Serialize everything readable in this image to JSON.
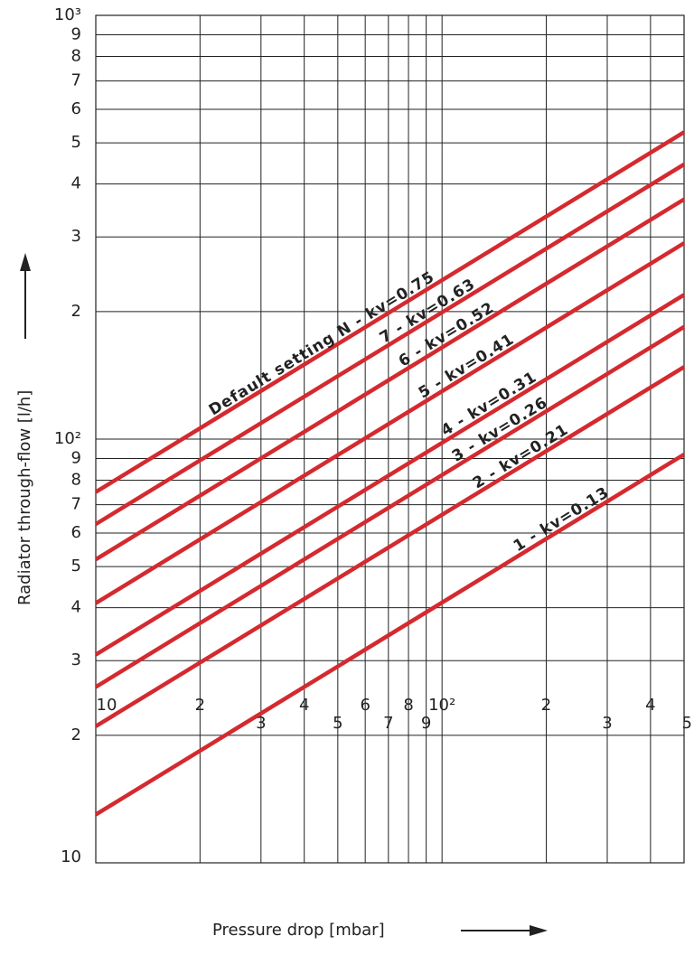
{
  "chart_data": {
    "type": "line",
    "x_label": "Pressure drop [mbar]",
    "y_label": "Radiator through-flow [l/h]",
    "log_x": true,
    "log_y": true,
    "grid": true,
    "xlim": [
      10,
      500
    ],
    "ylim": [
      10,
      1000
    ],
    "xticks": [
      10,
      {
        "value": 20,
        "label": "2"
      },
      {
        "value": 30,
        "label": "3"
      },
      {
        "value": 40,
        "label": "4"
      },
      {
        "value": 50,
        "label": "5"
      },
      {
        "value": 60,
        "label": "6"
      },
      {
        "value": 70,
        "label": "7"
      },
      {
        "value": 80,
        "label": "8"
      },
      {
        "value": 90,
        "label": "9"
      },
      {
        "value": 100,
        "label": "10²"
      },
      {
        "value": 200,
        "label": "2"
      },
      {
        "value": 300,
        "label": "3"
      },
      {
        "value": 400,
        "label": "4"
      },
      {
        "value": 500,
        "label": "5"
      }
    ],
    "yticks": [
      10,
      {
        "value": 20,
        "label": "2"
      },
      {
        "value": 30,
        "label": "3"
      },
      {
        "value": 40,
        "label": "4"
      },
      {
        "value": 50,
        "label": "5"
      },
      {
        "value": 60,
        "label": "6"
      },
      {
        "value": 70,
        "label": "7"
      },
      {
        "value": 80,
        "label": "8"
      },
      {
        "value": 90,
        "label": "9"
      },
      {
        "value": 100,
        "label": "10²"
      },
      {
        "value": 200,
        "label": "2"
      },
      {
        "value": 300,
        "label": "3"
      },
      {
        "value": 400,
        "label": "4"
      },
      {
        "value": 500,
        "label": "5"
      },
      {
        "value": 600,
        "label": "6"
      },
      {
        "value": 700,
        "label": "7"
      },
      {
        "value": 800,
        "label": "8"
      },
      {
        "value": 900,
        "label": "9"
      },
      {
        "value": 1000,
        "label": "10³"
      }
    ],
    "x": [
      10,
      500
    ],
    "series": [
      {
        "name": "Default setting N - kv=0.75",
        "color": "#d42a2f",
        "values": [
          75,
          530
        ]
      },
      {
        "name": "7 - kv=0.63",
        "color": "#d42a2f",
        "values": [
          63,
          445
        ]
      },
      {
        "name": "6 - kv=0.52",
        "color": "#d42a2f",
        "values": [
          52,
          368
        ]
      },
      {
        "name": "5 - kv=0.41",
        "color": "#d42a2f",
        "values": [
          41,
          290
        ]
      },
      {
        "name": "4 - kv=0.31",
        "color": "#d42a2f",
        "values": [
          31,
          219
        ]
      },
      {
        "name": "3 - kv=0.26",
        "color": "#d42a2f",
        "values": [
          26,
          184
        ]
      },
      {
        "name": "2 - kv=0.21",
        "color": "#d42a2f",
        "values": [
          21,
          148
        ]
      },
      {
        "name": "1 - kv=0.13",
        "color": "#d42a2f",
        "values": [
          13,
          92
        ]
      }
    ]
  }
}
